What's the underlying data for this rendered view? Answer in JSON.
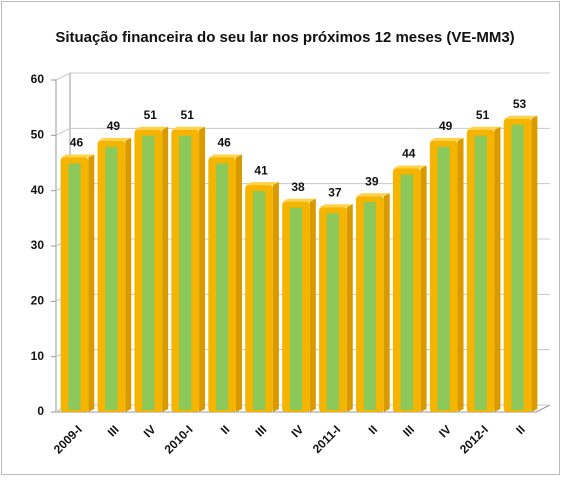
{
  "chart_data": {
    "type": "bar",
    "title": "Situação financeira do seu lar nos próximos 12 meses (VE-MM3)",
    "categories": [
      "2009-I",
      "III",
      "IV",
      "2010-I",
      "II",
      "III",
      "IV",
      "2011-I",
      "II",
      "III",
      "IV",
      "2012-I",
      "II"
    ],
    "values": [
      46,
      49,
      51,
      51,
      46,
      41,
      38,
      37,
      39,
      44,
      49,
      51,
      53
    ],
    "color": "#f5b400",
    "stripe_color": "#8cc95a",
    "ylim": [
      0,
      60
    ],
    "yticks": [
      0,
      10,
      20,
      30,
      40,
      50,
      60
    ],
    "grid": true
  }
}
